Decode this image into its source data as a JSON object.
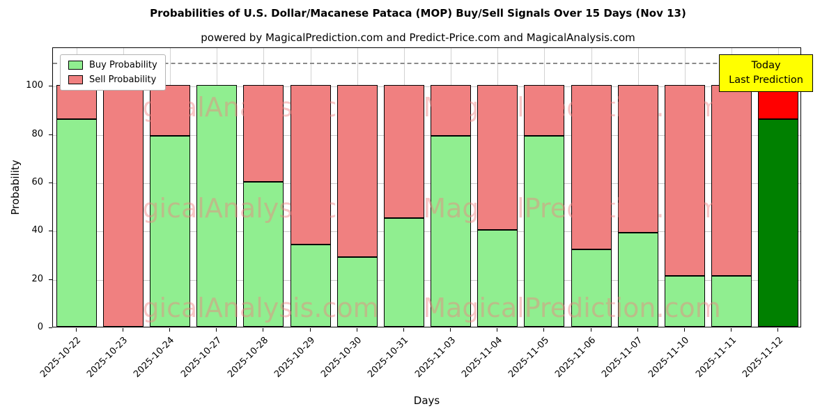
{
  "figure": {
    "title": "Probabilities of U.S. Dollar/Macanese Pataca (MOP) Buy/Sell Signals Over 15 Days (Nov 13)",
    "subtitle": "powered by MagicalPrediction.com and Predict-Price.com and MagicalAnalysis.com"
  },
  "chart_data": {
    "type": "bar",
    "stacked": true,
    "xlabel": "Days",
    "ylabel": "Probability",
    "ylim": [
      0,
      116
    ],
    "yticks": [
      0,
      20,
      40,
      60,
      80,
      100
    ],
    "dashed_guideline_y": 110,
    "grid": true,
    "categories": [
      "2025-10-22",
      "2025-10-23",
      "2025-10-24",
      "2025-10-27",
      "2025-10-28",
      "2025-10-29",
      "2025-10-30",
      "2025-10-31",
      "2025-11-03",
      "2025-11-04",
      "2025-11-05",
      "2025-11-06",
      "2025-11-07",
      "2025-11-10",
      "2025-11-11",
      "2025-11-12"
    ],
    "series": [
      {
        "name": "Buy Probability",
        "color": "#90EE90",
        "values": [
          86,
          0,
          79,
          100,
          60,
          34,
          29,
          45,
          79,
          40,
          79,
          32,
          39,
          21,
          21,
          86
        ]
      },
      {
        "name": "Sell Probability",
        "color": "#F08080",
        "values": [
          14,
          100,
          21,
          0,
          40,
          66,
          71,
          55,
          21,
          60,
          21,
          68,
          61,
          79,
          79,
          14
        ]
      }
    ],
    "today_bar": {
      "index": 15,
      "buy_color": "#008000",
      "sell_color": "#FF0000"
    },
    "legend_position": "upper-left",
    "annotation": {
      "lines": [
        "Today",
        "Last Prediction"
      ],
      "bg_color": "#FFFF00"
    },
    "watermarks": [
      "MagicalAnalysis.com",
      "MagicalPrediction.com"
    ]
  }
}
